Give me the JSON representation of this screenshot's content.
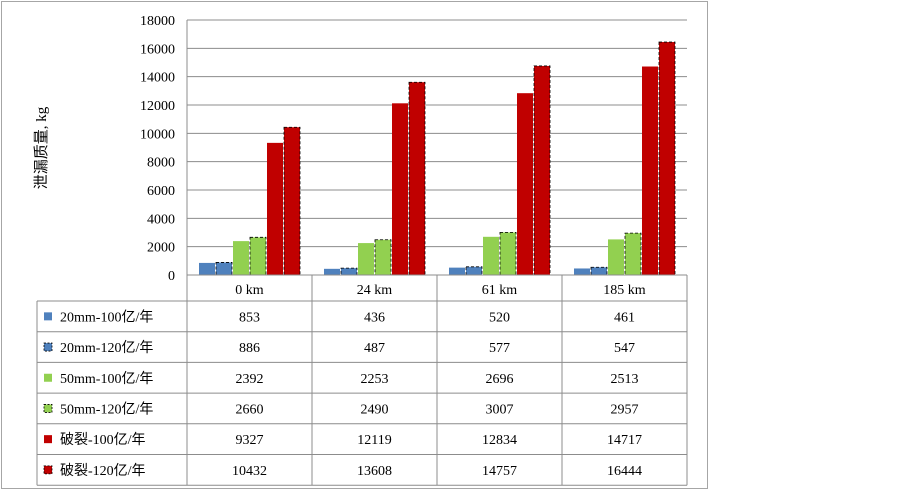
{
  "chart_data": {
    "type": "bar",
    "ylabel": "泄漏质量, kg",
    "ylim": [
      0,
      18000
    ],
    "ytick_step": 2000,
    "yticks": [
      "0",
      "2000",
      "4000",
      "6000",
      "8000",
      "10000",
      "12000",
      "14000",
      "16000",
      "18000"
    ],
    "grid": true,
    "legend": "data-table-left",
    "categories": [
      "0 km",
      "24 km",
      "61 km",
      "185 km"
    ],
    "series": [
      {
        "name": "20mm-100亿/年",
        "values": [
          853,
          436,
          520,
          461
        ],
        "color": "#4f81bd",
        "dashed": false
      },
      {
        "name": "20mm-120亿/年",
        "values": [
          886,
          487,
          577,
          547
        ],
        "color": "#4f81bd",
        "dashed": true
      },
      {
        "name": "50mm-100亿/年",
        "values": [
          2392,
          2253,
          2696,
          2513
        ],
        "color": "#92d050",
        "dashed": false
      },
      {
        "name": "50mm-120亿/年",
        "values": [
          2660,
          2490,
          3007,
          2957
        ],
        "color": "#92d050",
        "dashed": true
      },
      {
        "name": "破裂-100亿/年",
        "values": [
          9327,
          12119,
          12834,
          14717
        ],
        "color": "#c00000",
        "dashed": false
      },
      {
        "name": "破裂-120亿/年",
        "values": [
          10432,
          13608,
          14757,
          16444
        ],
        "color": "#c00000",
        "dashed": true
      }
    ]
  }
}
